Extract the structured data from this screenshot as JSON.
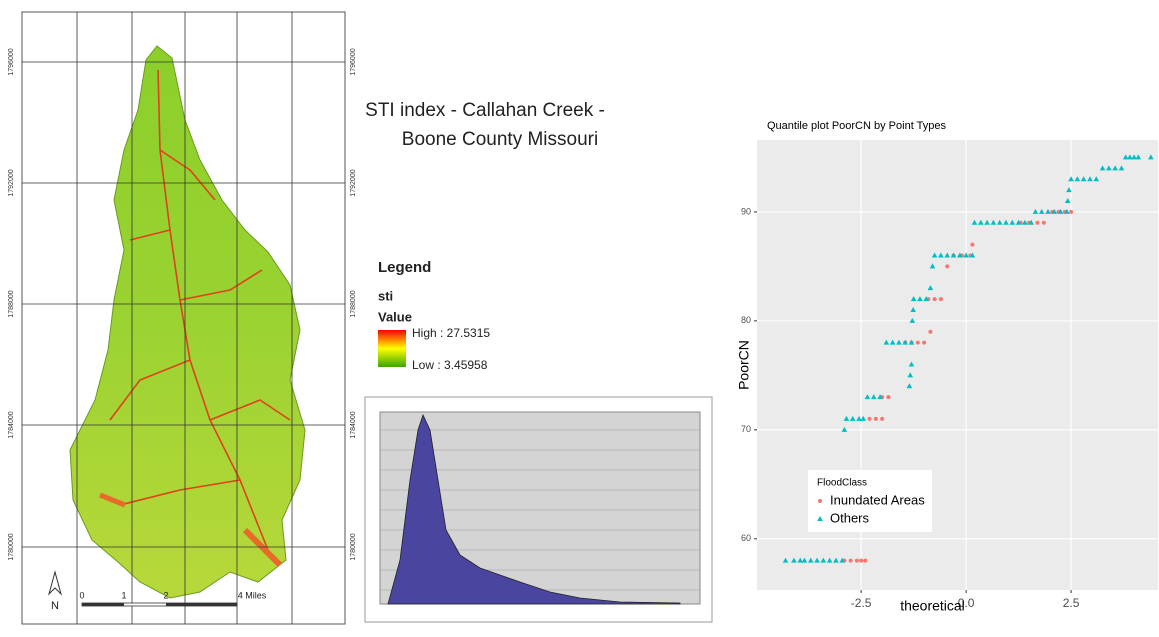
{
  "map": {
    "y_labels": [
      "1796000",
      "1792000",
      "1788000",
      "1784000",
      "1780000"
    ],
    "scale_labels": [
      "0",
      "1",
      "2",
      "4 Miles"
    ],
    "north": "N",
    "title": [
      "STI index - Callahan Creek -",
      "Boone County Missouri"
    ],
    "legend": {
      "title": "Legend",
      "layer": "sti",
      "field": "Value",
      "high": "High : 27.5315",
      "low": "Low : 3.45958"
    }
  },
  "chart_data": {
    "type": "scatter",
    "title": "Quantile plot PoorCN by Point Types",
    "x_label": "theoretical",
    "y_label": "PoorCN",
    "legend_title": "FloodClass",
    "legend": "bottom-left",
    "xlim": [
      -4.98,
      4.57
    ],
    "ylim": [
      55.3,
      96.6
    ],
    "xticks": [
      -2.5,
      {
        "value": 0,
        "label": "0.0"
      },
      2.5
    ],
    "yticks": [
      60,
      70,
      80,
      90
    ],
    "grid": true,
    "series": [
      {
        "name": "Inundated Areas",
        "color": "#F8766D",
        "marker": "circle",
        "x": [
          -2.9,
          -2.75,
          -2.6,
          -2.5,
          -2.4,
          -2.3,
          -2.15,
          -2.0,
          -2.0,
          -1.85,
          -1.45,
          -1.3,
          -1.15,
          -1.0,
          -0.85,
          -0.9,
          -0.75,
          -0.6,
          -0.45,
          -0.3,
          -0.1,
          0.1,
          0.15,
          1.3,
          1.5,
          1.7,
          1.85,
          2.05,
          2.2,
          2.35,
          2.5
        ],
        "y": [
          58,
          58,
          58,
          58,
          58,
          71,
          71,
          71,
          73,
          73,
          78,
          78,
          78,
          78,
          79,
          82,
          82,
          82,
          85,
          86,
          86,
          86,
          87,
          89,
          89,
          89,
          89,
          90,
          90,
          90,
          90
        ]
      },
      {
        "name": "Others",
        "color": "#00BFC4",
        "marker": "triangle",
        "x": [
          -4.3,
          -4.1,
          -3.95,
          -3.85,
          -3.7,
          -3.55,
          -3.4,
          -3.25,
          -3.1,
          -2.95,
          -2.9,
          -2.85,
          -2.7,
          -2.55,
          -2.45,
          -2.35,
          -2.2,
          -2.05,
          -1.35,
          -1.33,
          -1.3,
          -1.9,
          -1.75,
          -1.6,
          -1.45,
          -1.3,
          -1.28,
          -1.26,
          -1.25,
          -1.1,
          -0.95,
          -0.85,
          -0.8,
          -0.75,
          -0.6,
          -0.45,
          -0.3,
          -0.15,
          0,
          0.15,
          0.2,
          0.35,
          0.5,
          0.65,
          0.8,
          0.95,
          1.1,
          1.25,
          1.4,
          1.55,
          1.65,
          1.8,
          1.95,
          2.1,
          2.25,
          2.4,
          2.42,
          2.45,
          2.5,
          2.65,
          2.8,
          2.95,
          3.1,
          3.25,
          3.4,
          3.55,
          3.7,
          3.8,
          3.9,
          4.0,
          4.1,
          4.4
        ],
        "y": [
          58,
          58,
          58,
          58,
          58,
          58,
          58,
          58,
          58,
          58,
          70,
          71,
          71,
          71,
          71,
          73,
          73,
          73,
          74,
          75,
          76,
          78,
          78,
          78,
          78,
          78,
          80,
          81,
          82,
          82,
          82,
          83,
          85,
          86,
          86,
          86,
          86,
          86,
          86,
          86,
          89,
          89,
          89,
          89,
          89,
          89,
          89,
          89,
          89,
          89,
          90,
          90,
          90,
          90,
          90,
          90,
          91,
          92,
          93,
          93,
          93,
          93,
          93,
          94,
          94,
          94,
          94,
          95,
          95,
          95,
          95,
          95
        ]
      }
    ]
  }
}
